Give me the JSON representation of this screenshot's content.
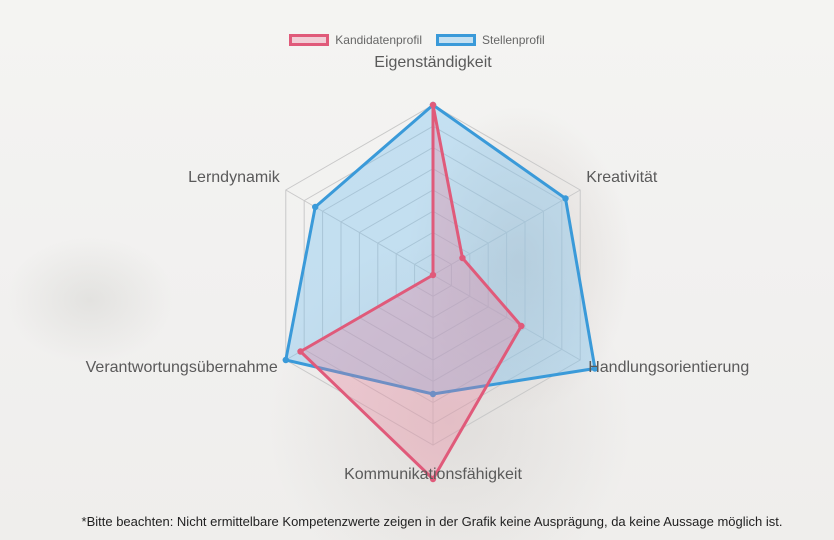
{
  "legend": {
    "candidate_label": "Kandidatenprofil",
    "job_label": "Stellenprofil"
  },
  "footnote": "*Bitte beachten: Nicht ermittelbare Kompetenzwerte zeigen in der Grafik keine Ausprägung, da keine Aussage möglich ist.",
  "chart_data": {
    "type": "radar",
    "axes": [
      "Eigenständigkeit",
      "Kreativität",
      "Handlungsorientierung",
      "Kommunikationsfähigkeit",
      "Verantwortungsübernahme",
      "Lerndynamik"
    ],
    "scale": {
      "min": 0,
      "max": 10,
      "gridlines": 8
    },
    "series": [
      {
        "name": "Kandidatenprofil",
        "values": [
          10,
          2,
          6,
          12,
          9,
          0
        ],
        "color": "#e05a7a",
        "fill": "rgba(236,120,150,0.30)"
      },
      {
        "name": "Stellenprofil",
        "values": [
          10,
          9,
          11,
          7,
          10,
          8
        ],
        "color": "#3a9ad9",
        "fill": "rgba(110,190,240,0.35)"
      }
    ]
  }
}
